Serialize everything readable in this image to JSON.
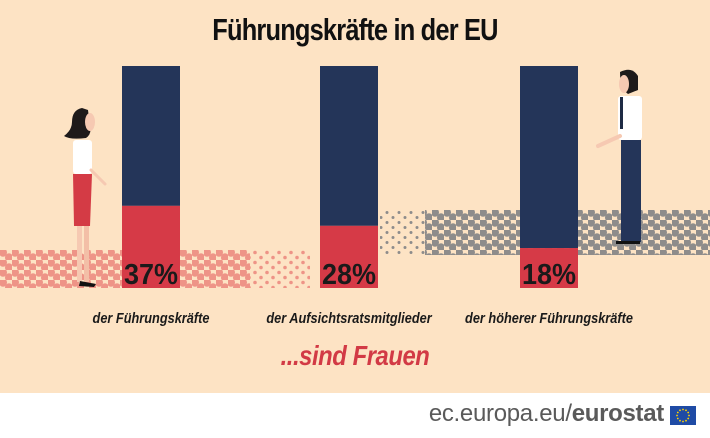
{
  "chart_data": {
    "type": "bar",
    "title": "Führungskräfte in der EU",
    "subtitle": "...sind Frauen",
    "categories": [
      "der Führungskräfte",
      "der Aufsichtsratsmitglieder",
      "der höherer Führungskräfte"
    ],
    "values": [
      37,
      28,
      18
    ],
    "value_labels": [
      "37%",
      "28%",
      "18%"
    ],
    "unit": "%",
    "ylim": [
      0,
      100
    ],
    "colors": {
      "women": "#d63a47",
      "men": "#243559",
      "background": "#fde3c4"
    }
  },
  "footer": {
    "url_prefix": "ec.europa.eu/",
    "url_brand": "eurostat",
    "flag_icon": "eu-flag-icon"
  }
}
